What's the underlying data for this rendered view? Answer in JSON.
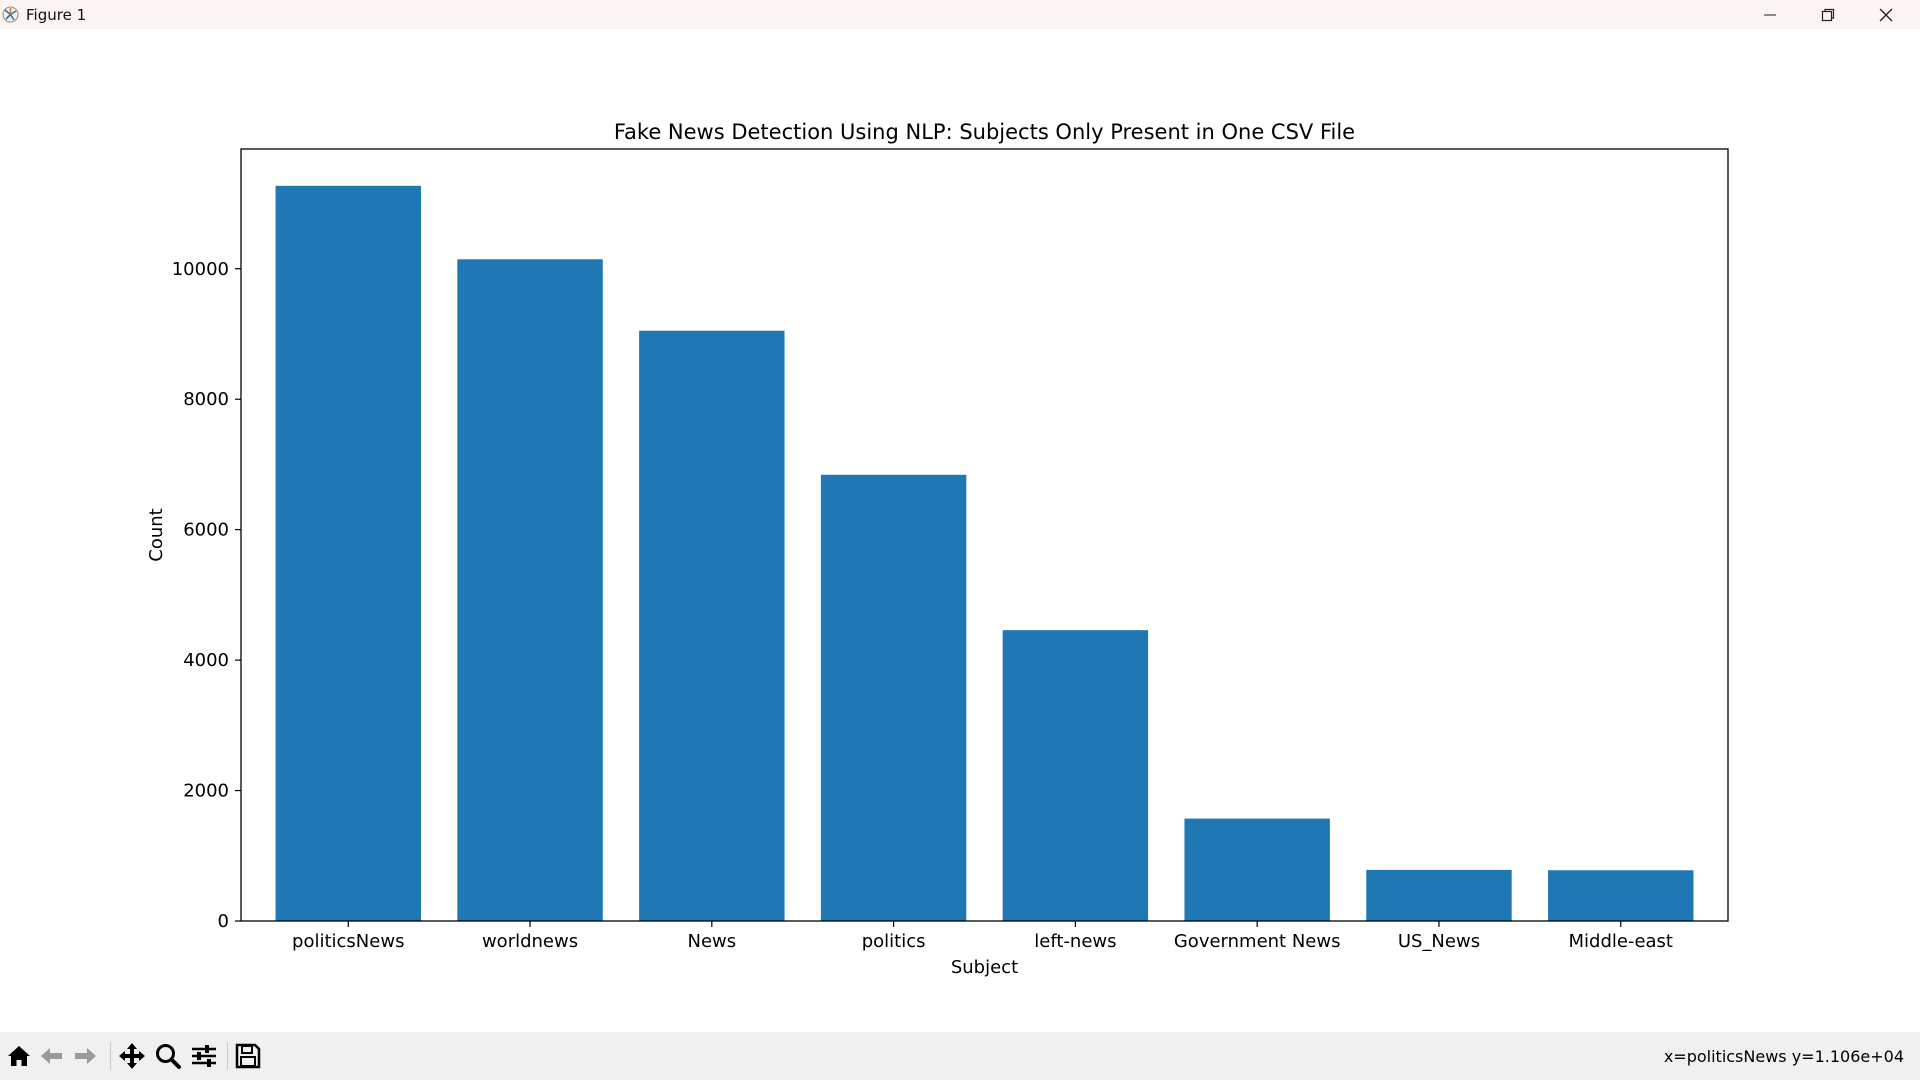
{
  "window": {
    "title": "Figure 1",
    "icons": {
      "app": "matplotlib-icon",
      "minimize": "minimize-icon",
      "restore": "restore-icon",
      "close": "close-icon"
    }
  },
  "toolbar": {
    "buttons": [
      "home-icon",
      "back-arrow-icon",
      "forward-arrow-icon",
      "pan-icon",
      "zoom-icon",
      "configure-subplots-icon",
      "save-icon"
    ],
    "status_text": "x=politicsNews y=1.106e+04"
  },
  "chart_data": {
    "type": "bar",
    "title": "Fake News Detection Using NLP: Subjects Only Present in One CSV File",
    "xlabel": "Subject",
    "ylabel": "Count",
    "categories": [
      "politicsNews",
      "worldnews",
      "News",
      "politics",
      "left-news",
      "Government News",
      "US_News",
      "Middle-east"
    ],
    "values": [
      11272,
      10145,
      9050,
      6841,
      4459,
      1570,
      783,
      778
    ],
    "ylim": [
      0,
      11836
    ],
    "yticks": [
      0,
      2000,
      4000,
      6000,
      8000,
      10000
    ],
    "bar_color": "#1f77b4",
    "grid": false,
    "legend": false
  }
}
